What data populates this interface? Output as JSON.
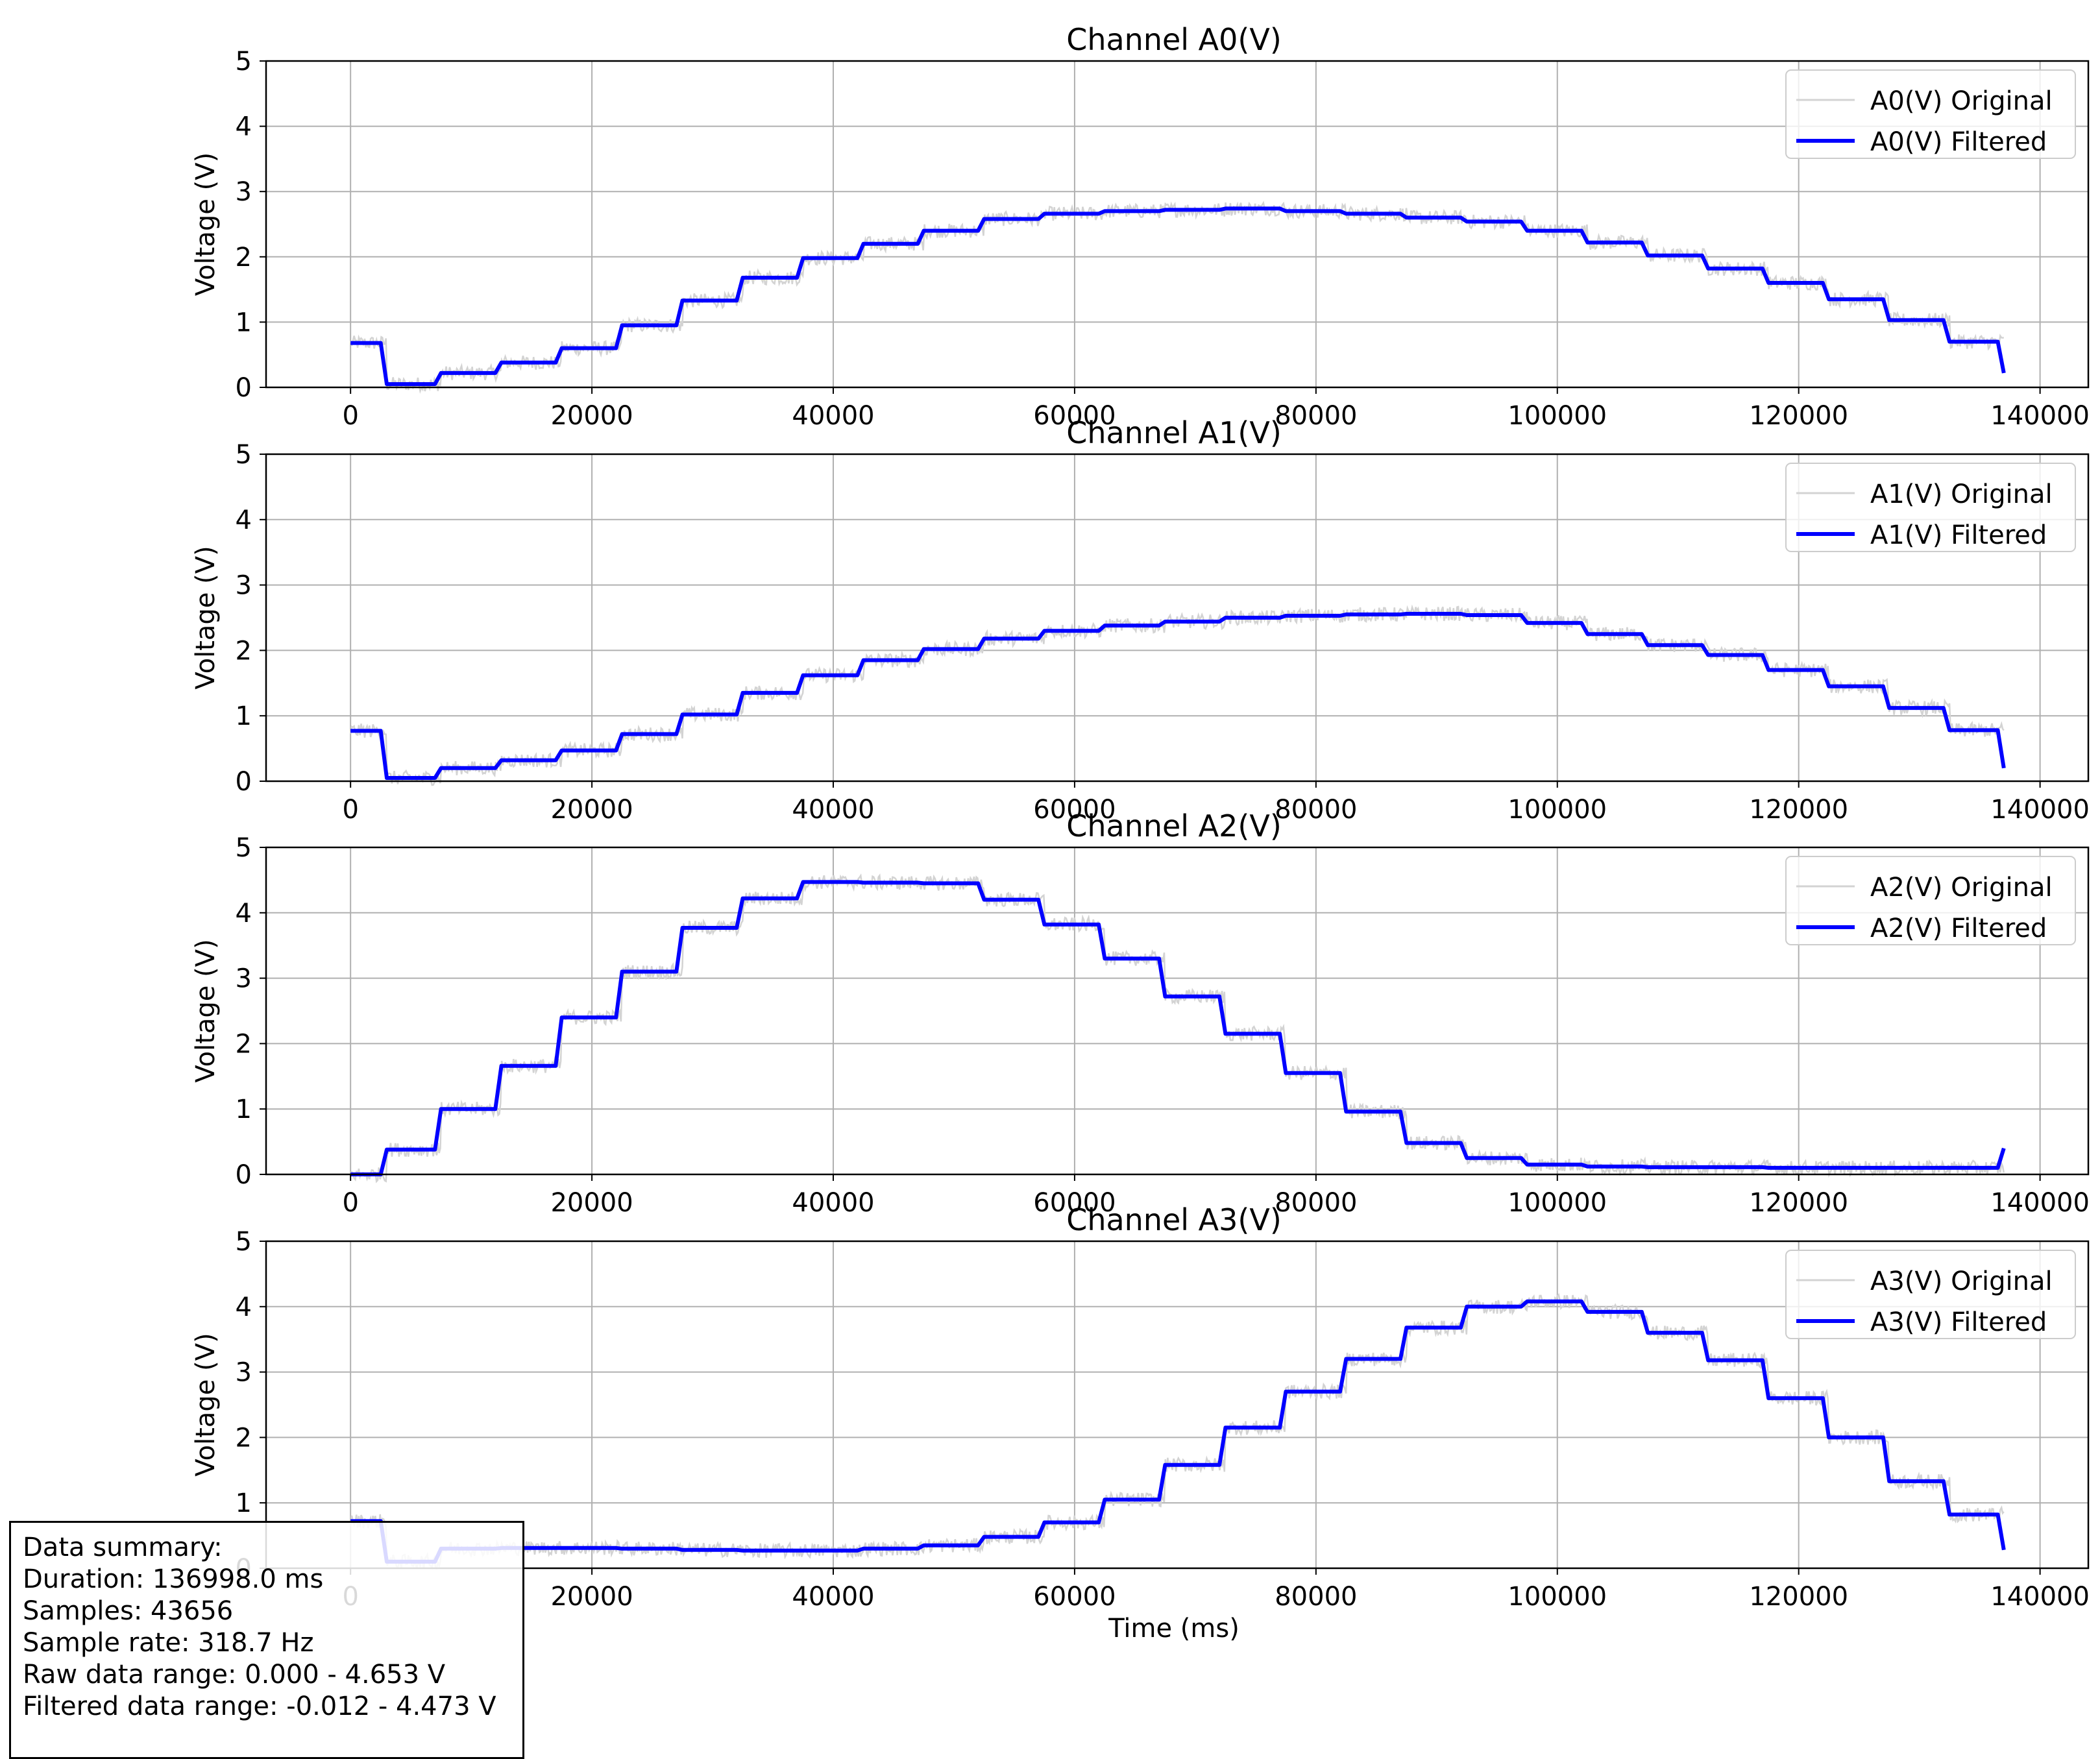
{
  "colors": {
    "original": "#d3d3d3",
    "filtered": "#0000ff",
    "grid": "#b0b0b0",
    "axes": "#000000",
    "background": "#ffffff"
  },
  "chart_data": [
    {
      "type": "line",
      "title": "Channel A0(V)",
      "xlabel": "",
      "ylabel": "Voltage (V)",
      "xlim": [
        -7000,
        144000
      ],
      "ylim": [
        0,
        5
      ],
      "xticks": [
        0,
        20000,
        40000,
        60000,
        80000,
        100000,
        120000,
        140000
      ],
      "yticks": [
        0,
        1,
        2,
        3,
        4,
        5
      ],
      "grid": true,
      "legend_position": "top-right",
      "series": [
        {
          "name": "A0(V) Original",
          "color": "#d3d3d3"
        },
        {
          "name": "A0(V) Filtered",
          "color": "#0000ff"
        }
      ],
      "x": [
        0,
        2500,
        3000,
        7500,
        12500,
        17500,
        22500,
        27500,
        32500,
        37500,
        42500,
        47500,
        52500,
        57500,
        62500,
        67500,
        72500,
        77500,
        82500,
        87500,
        92500,
        97500,
        102500,
        107500,
        112500,
        117500,
        122500,
        127500,
        132500,
        136998
      ],
      "y": [
        0.68,
        0.68,
        0.05,
        0.22,
        0.38,
        0.6,
        0.95,
        1.33,
        1.68,
        1.98,
        2.2,
        2.4,
        2.58,
        2.66,
        2.7,
        2.72,
        2.74,
        2.7,
        2.66,
        2.6,
        2.54,
        2.4,
        2.22,
        2.02,
        1.82,
        1.6,
        1.35,
        1.03,
        0.7,
        0.22
      ]
    },
    {
      "type": "line",
      "title": "Channel A1(V)",
      "xlabel": "",
      "ylabel": "Voltage (V)",
      "xlim": [
        -7000,
        144000
      ],
      "ylim": [
        0,
        5
      ],
      "xticks": [
        0,
        20000,
        40000,
        60000,
        80000,
        100000,
        120000,
        140000
      ],
      "yticks": [
        0,
        1,
        2,
        3,
        4,
        5
      ],
      "grid": true,
      "legend_position": "top-right",
      "series": [
        {
          "name": "A1(V) Original",
          "color": "#d3d3d3"
        },
        {
          "name": "A1(V) Filtered",
          "color": "#0000ff"
        }
      ],
      "x": [
        0,
        2500,
        3000,
        7500,
        12500,
        17500,
        22500,
        27500,
        32500,
        37500,
        42500,
        47500,
        52500,
        57500,
        62500,
        67500,
        72500,
        77500,
        82500,
        87500,
        92500,
        97500,
        102500,
        107500,
        112500,
        117500,
        122500,
        127500,
        132500,
        136998
      ],
      "y": [
        0.77,
        0.77,
        0.05,
        0.2,
        0.32,
        0.47,
        0.72,
        1.02,
        1.35,
        1.62,
        1.85,
        2.02,
        2.18,
        2.3,
        2.38,
        2.44,
        2.5,
        2.53,
        2.55,
        2.56,
        2.54,
        2.42,
        2.25,
        2.08,
        1.93,
        1.7,
        1.45,
        1.12,
        0.78,
        0.2
      ]
    },
    {
      "type": "line",
      "title": "Channel A2(V)",
      "xlabel": "",
      "ylabel": "Voltage (V)",
      "xlim": [
        -7000,
        144000
      ],
      "ylim": [
        0,
        5
      ],
      "xticks": [
        0,
        20000,
        40000,
        60000,
        80000,
        100000,
        120000,
        140000
      ],
      "yticks": [
        0,
        1,
        2,
        3,
        4,
        5
      ],
      "grid": true,
      "legend_position": "top-right",
      "series": [
        {
          "name": "A2(V) Original",
          "color": "#d3d3d3"
        },
        {
          "name": "A2(V) Filtered",
          "color": "#0000ff"
        }
      ],
      "x": [
        0,
        2500,
        3000,
        7500,
        12500,
        17500,
        22500,
        27500,
        32500,
        37500,
        42500,
        47500,
        52500,
        57500,
        62500,
        67500,
        72500,
        77500,
        82500,
        87500,
        92500,
        97500,
        102500,
        107500,
        112500,
        117500,
        122500,
        127500,
        132500,
        136998
      ],
      "y": [
        0.0,
        0.0,
        0.38,
        1.0,
        1.66,
        2.4,
        3.1,
        3.77,
        4.22,
        4.47,
        4.46,
        4.45,
        4.2,
        3.82,
        3.3,
        2.72,
        2.15,
        1.55,
        0.96,
        0.48,
        0.25,
        0.15,
        0.12,
        0.11,
        0.11,
        0.1,
        0.1,
        0.1,
        0.1,
        0.4
      ]
    },
    {
      "type": "line",
      "title": "Channel A3(V)",
      "xlabel": "Time (ms)",
      "ylabel": "Voltage (V)",
      "xlim": [
        -7000,
        144000
      ],
      "ylim": [
        0,
        5
      ],
      "xticks": [
        0,
        20000,
        40000,
        60000,
        80000,
        100000,
        120000,
        140000
      ],
      "yticks": [
        0,
        1,
        2,
        3,
        4,
        5
      ],
      "grid": true,
      "legend_position": "top-right",
      "series": [
        {
          "name": "A3(V) Original",
          "color": "#d3d3d3"
        },
        {
          "name": "A3(V) Filtered",
          "color": "#0000ff"
        }
      ],
      "x": [
        0,
        2500,
        3000,
        7500,
        12500,
        17500,
        22500,
        27500,
        32500,
        37500,
        42500,
        47500,
        52500,
        57500,
        62500,
        67500,
        72500,
        77500,
        82500,
        87500,
        92500,
        97500,
        102500,
        107500,
        112500,
        117500,
        122500,
        127500,
        132500,
        136998
      ],
      "y": [
        0.72,
        0.72,
        0.1,
        0.3,
        0.31,
        0.31,
        0.3,
        0.28,
        0.27,
        0.27,
        0.3,
        0.35,
        0.48,
        0.7,
        1.05,
        1.58,
        2.15,
        2.7,
        3.2,
        3.68,
        4.0,
        4.08,
        3.92,
        3.6,
        3.18,
        2.6,
        2.0,
        1.33,
        0.82,
        0.28
      ]
    }
  ],
  "summary": {
    "title": "Data summary:",
    "duration": "Duration: 136998.0 ms",
    "samples": "Samples: 43656",
    "sample_rate": "Sample rate: 318.7 Hz",
    "raw_range": "Raw data range: 0.000 - 4.653 V",
    "filtered_range": "Filtered data range: -0.012 - 4.473 V"
  }
}
